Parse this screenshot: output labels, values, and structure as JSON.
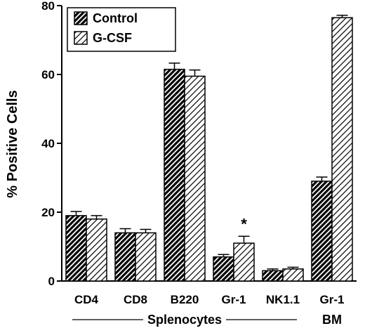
{
  "chart_data": {
    "type": "bar",
    "ylabel": "% Positive Cells",
    "ylim": [
      0,
      80
    ],
    "yticks": [
      0,
      20,
      40,
      60,
      80
    ],
    "categories": [
      "CD4",
      "CD8",
      "B220",
      "Gr-1",
      "NK1.1",
      "Gr-1"
    ],
    "series": [
      {
        "name": "Control",
        "pattern": "dense-hatch",
        "values": [
          19,
          14,
          61.5,
          7,
          3,
          29
        ],
        "errors": [
          1.2,
          1.2,
          1.8,
          0.7,
          0.5,
          1.2
        ]
      },
      {
        "name": "G-CSF",
        "pattern": "light-hatch",
        "values": [
          18,
          14,
          59.5,
          11,
          3.5,
          76.5
        ],
        "errors": [
          1.0,
          1.0,
          1.8,
          2.0,
          0.5,
          0.7
        ]
      }
    ],
    "groups": [
      {
        "label": "Splenocytes",
        "categories": [
          0,
          1,
          2,
          3,
          4
        ]
      },
      {
        "label": "BM",
        "categories": [
          5
        ]
      }
    ],
    "annotations": [
      {
        "text": "*",
        "category": 3,
        "series": 1
      }
    ],
    "legend": {
      "placement": "top-left"
    }
  }
}
